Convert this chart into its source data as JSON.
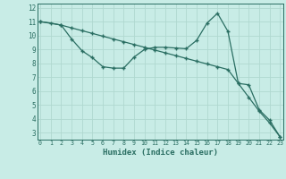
{
  "xlabel": "Humidex (Indice chaleur)",
  "background_color": "#c8ece6",
  "grid_color": "#b0d8d0",
  "line_color": "#2a6e62",
  "x_ticks": [
    0,
    1,
    2,
    3,
    4,
    5,
    6,
    7,
    8,
    9,
    10,
    11,
    12,
    13,
    14,
    15,
    16,
    17,
    18,
    19,
    20,
    21,
    22,
    23
  ],
  "y_ticks": [
    3,
    4,
    5,
    6,
    7,
    8,
    9,
    10,
    11,
    12
  ],
  "ylim": [
    2.5,
    12.3
  ],
  "xlim": [
    -0.3,
    23.3
  ],
  "line1_x": [
    0,
    1,
    2,
    3,
    4,
    5,
    6,
    7,
    8,
    9,
    10,
    11,
    12,
    13,
    14,
    15,
    16,
    17,
    18,
    19,
    20,
    21,
    22,
    23
  ],
  "line1_y": [
    11.0,
    10.9,
    10.75,
    10.55,
    10.35,
    10.15,
    9.95,
    9.75,
    9.55,
    9.35,
    9.15,
    8.95,
    8.75,
    8.55,
    8.35,
    8.15,
    7.95,
    7.75,
    7.55,
    6.55,
    5.55,
    4.55,
    3.7,
    2.7
  ],
  "line2_x": [
    0,
    2,
    3,
    4,
    5,
    6,
    7,
    8,
    9,
    10,
    11,
    12,
    13,
    14,
    15,
    16,
    17,
    18,
    19,
    20,
    21,
    22,
    23
  ],
  "line2_y": [
    11.0,
    10.75,
    9.75,
    8.9,
    8.4,
    7.75,
    7.65,
    7.65,
    8.45,
    9.0,
    9.15,
    9.15,
    9.1,
    9.05,
    9.65,
    10.9,
    11.6,
    10.3,
    6.55,
    6.45,
    4.65,
    3.9,
    2.7
  ]
}
